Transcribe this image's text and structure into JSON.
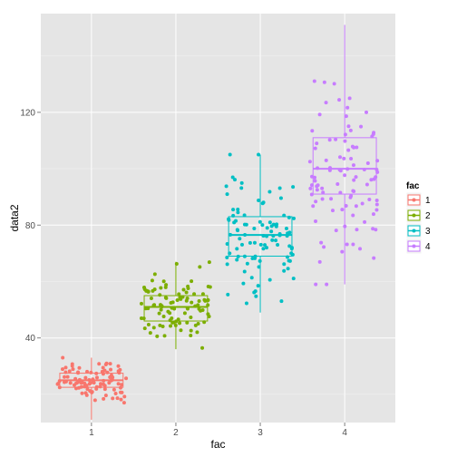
{
  "chart_data": {
    "type": "boxplot",
    "xlabel": "fac",
    "ylabel": "data2",
    "categories": [
      "1",
      "2",
      "3",
      "4"
    ],
    "ylim": [
      10,
      155
    ],
    "yticks": [
      40,
      80,
      120
    ],
    "grid": true,
    "legend": {
      "title": "fac",
      "position": "right",
      "entries": [
        "1",
        "2",
        "3",
        "4"
      ]
    },
    "colors": [
      "#f8766d",
      "#7cae00",
      "#00bfc4",
      "#c77cff"
    ],
    "panel_background": "#e5e5e5",
    "grid_color": "#ffffff",
    "series": [
      {
        "category": "1",
        "min": 11,
        "q1": 22.5,
        "median": 25,
        "q3": 27.5,
        "max": 33,
        "spread": 4,
        "n": 100
      },
      {
        "category": "2",
        "min": 36,
        "q1": 46,
        "median": 51,
        "q3": 55,
        "max": 67,
        "spread": 6,
        "n": 100
      },
      {
        "category": "3",
        "min": 49,
        "q1": 69,
        "median": 76.5,
        "q3": 83,
        "max": 105,
        "spread": 10,
        "n": 100
      },
      {
        "category": "4",
        "min": 59,
        "q1": 91,
        "median": 100,
        "q3": 111,
        "max": 151,
        "spread": 15,
        "n": 100
      }
    ]
  }
}
